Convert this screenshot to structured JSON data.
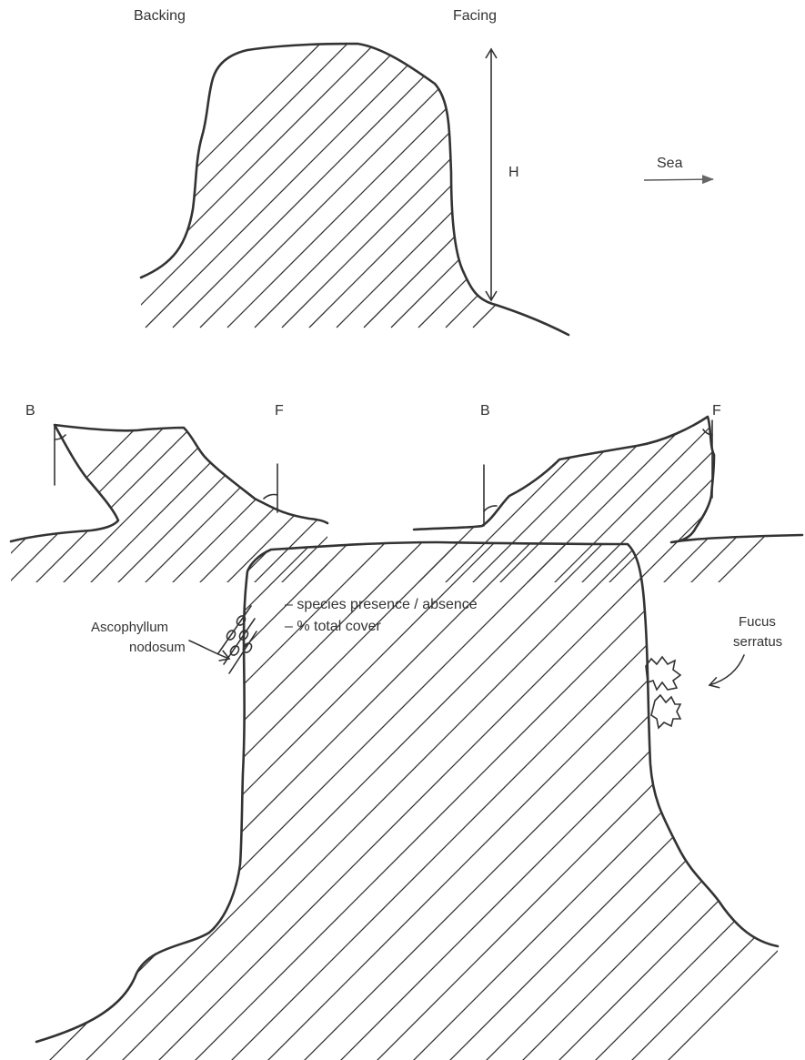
{
  "top_profile": {
    "label_left": "Backing",
    "label_right": "Facing",
    "height_label": "H",
    "sea_label": "Sea"
  },
  "slope_profiles": {
    "left": {
      "backing_label": "B",
      "facing_label": "F"
    },
    "right": {
      "backing_label": "B",
      "facing_label": "F"
    }
  },
  "measures": {
    "line1": "– species  presence / absence",
    "line2": "– % total  cover"
  },
  "species_profile": {
    "left_species": [
      "Ascophyllum",
      "nodosum"
    ],
    "right_species": [
      "Fucus",
      "serratus"
    ]
  },
  "colors": {
    "ink": "#333333",
    "background": "#ffffff"
  }
}
